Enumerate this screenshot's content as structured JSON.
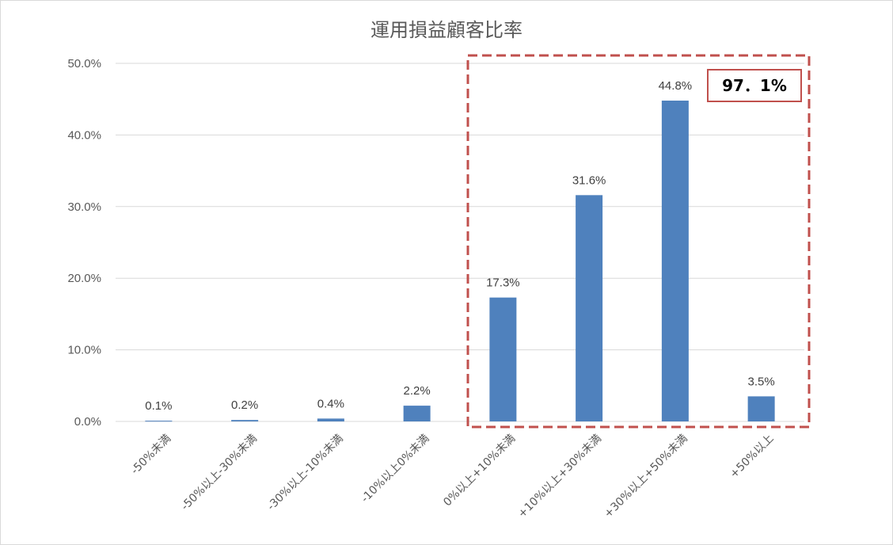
{
  "chart_data": {
    "type": "bar",
    "title": "運用損益顧客比率",
    "categories": [
      "-50%未満",
      "-50%以上-30%未満",
      "-30%以上-10%未満",
      "-10%以上0%未満",
      "0%以上+10%未満",
      "+10%以上+30%未満",
      "+30%以上+50%未満",
      "+50%以上"
    ],
    "values": [
      0.1,
      0.2,
      0.4,
      2.2,
      17.3,
      31.6,
      44.8,
      3.5
    ],
    "data_labels": [
      "0.1%",
      "0.2%",
      "0.4%",
      "2.2%",
      "17.3%",
      "31.6%",
      "44.8%",
      "3.5%"
    ],
    "yticks": [
      0,
      10,
      20,
      30,
      40,
      50
    ],
    "ytick_labels": [
      "0.0%",
      "10.0%",
      "20.0%",
      "30.0%",
      "40.0%",
      "50.0%"
    ],
    "ylim": [
      0,
      50
    ],
    "grid": true,
    "xlabel": "",
    "ylabel": "",
    "bar_color": "#4f81bd",
    "highlight": {
      "categories": [
        "0%以上+10%未満",
        "+10%以上+30%未満",
        "+30%以上+50%未満",
        "+50%以上"
      ],
      "label": "97．1%",
      "border_color": "#c0504d"
    }
  }
}
